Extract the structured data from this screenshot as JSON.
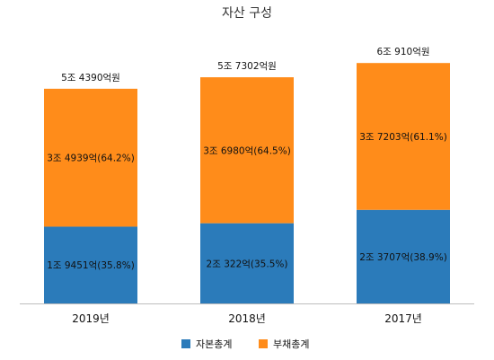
{
  "chart_data": {
    "type": "bar",
    "stacked": true,
    "title": "자산 구성",
    "categories": [
      "2019년",
      "2018년",
      "2017년"
    ],
    "totals": [
      "5조 4390억원",
      "5조 7302억원",
      "6조 910억원"
    ],
    "series": [
      {
        "name": "자본총계",
        "color": "#2b7bba",
        "values": [
          19451,
          20322,
          23707
        ],
        "labels": [
          "1조 9451억(35.8%)",
          "2조 322억(35.5%)",
          "2조 3707억(38.9%)"
        ]
      },
      {
        "name": "부채총계",
        "color": "#ff8c1a",
        "values": [
          34939,
          36980,
          37203
        ],
        "labels": [
          "3조 4939억(64.2%)",
          "3조 6980억(64.5%)",
          "3조 7203억(61.1%)"
        ]
      }
    ],
    "unit": "억원",
    "ylim": [
      0,
      63000
    ],
    "grid": false,
    "legend_position": "bottom"
  }
}
